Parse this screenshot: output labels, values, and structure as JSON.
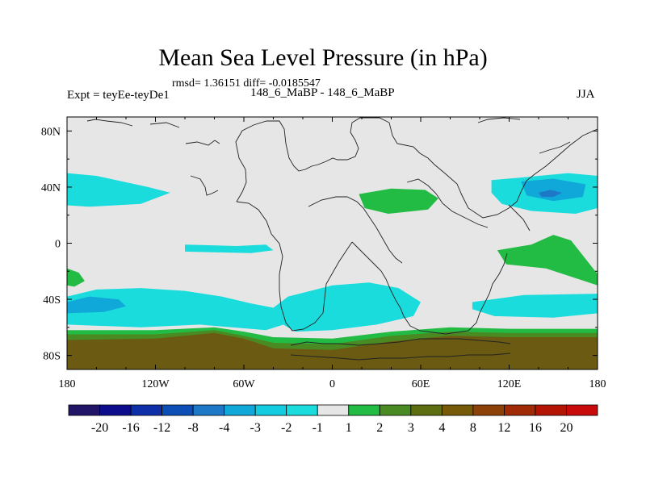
{
  "chart_data": {
    "type": "heatmap",
    "title": "Mean Sea Level Pressure (in hPa)",
    "stats": "rmsd= 1.36151 diff= -0.0185547",
    "left_label": "Expt = teyEe-teyDe1",
    "center_label": "148_6_MaBP - 148_6_MaBP",
    "right_label": "JJA",
    "xlim": [
      -180,
      180
    ],
    "ylim": [
      -90,
      90
    ],
    "x_ticks": [
      {
        "value": -180,
        "label": "180"
      },
      {
        "value": -120,
        "label": "120W"
      },
      {
        "value": -60,
        "label": "60W"
      },
      {
        "value": 0,
        "label": "0"
      },
      {
        "value": 60,
        "label": "60E"
      },
      {
        "value": 120,
        "label": "120E"
      },
      {
        "value": 180,
        "label": "180"
      }
    ],
    "y_ticks": [
      {
        "value": 80,
        "label": "80N"
      },
      {
        "value": 40,
        "label": "40N"
      },
      {
        "value": 0,
        "label": "0"
      },
      {
        "value": -40,
        "label": "40S"
      },
      {
        "value": -80,
        "label": "80S"
      }
    ],
    "colorbar": {
      "colors": [
        "#221466",
        "#0c0c8c",
        "#0e2fa8",
        "#0c4db6",
        "#1e78c8",
        "#10a8d8",
        "#14cce0",
        "#1adcdc",
        "#e6e6e6",
        "#22bb44",
        "#4a8a22",
        "#5c6e10",
        "#765a08",
        "#8c4206",
        "#a02a06",
        "#b41404",
        "#c80a0a"
      ],
      "labels": [
        "-20",
        "-16",
        "-12",
        "-8",
        "-4",
        "-3",
        "-2",
        "-1",
        "1",
        "2",
        "3",
        "4",
        "8",
        "12",
        "16",
        "20"
      ]
    },
    "regions": [
      {
        "name": "band-60-65S",
        "level": "2 to 3",
        "color": "#22bb44",
        "points": [
          [
            -180,
            -62
          ],
          [
            -120,
            -62
          ],
          [
            -80,
            -60
          ],
          [
            -60,
            -63
          ],
          [
            -40,
            -67
          ],
          [
            0,
            -68
          ],
          [
            40,
            -63
          ],
          [
            80,
            -60
          ],
          [
            120,
            -61
          ],
          [
            180,
            -61
          ],
          [
            180,
            -90
          ],
          [
            -180,
            -90
          ]
        ]
      },
      {
        "name": "band-65-70S",
        "level": "3 to 4",
        "color": "#4a8a22",
        "points": [
          [
            -180,
            -65
          ],
          [
            -120,
            -65
          ],
          [
            -80,
            -62
          ],
          [
            -60,
            -66
          ],
          [
            -40,
            -71
          ],
          [
            0,
            -72
          ],
          [
            40,
            -66
          ],
          [
            80,
            -63
          ],
          [
            120,
            -64
          ],
          [
            180,
            -64
          ],
          [
            180,
            -90
          ],
          [
            -180,
            -90
          ]
        ]
      },
      {
        "name": "band-70-90S",
        "level": "4 to 8",
        "color": "#6a5a12",
        "points": [
          [
            -180,
            -69
          ],
          [
            -120,
            -68
          ],
          [
            -80,
            -64
          ],
          [
            -60,
            -68
          ],
          [
            -40,
            -75
          ],
          [
            0,
            -76
          ],
          [
            40,
            -70
          ],
          [
            80,
            -66
          ],
          [
            120,
            -67
          ],
          [
            180,
            -67
          ],
          [
            180,
            -90
          ],
          [
            -180,
            -90
          ]
        ]
      },
      {
        "name": "southern-ocean-low-west",
        "level": "-2 to -1",
        "color": "#1adcdc",
        "points": [
          [
            -180,
            -38
          ],
          [
            -160,
            -33
          ],
          [
            -130,
            -32
          ],
          [
            -100,
            -34
          ],
          [
            -75,
            -38
          ],
          [
            -55,
            -43
          ],
          [
            -40,
            -46
          ],
          [
            -35,
            -53
          ],
          [
            -30,
            -57
          ],
          [
            -45,
            -62
          ],
          [
            -90,
            -58
          ],
          [
            -130,
            -60
          ],
          [
            -180,
            -58
          ]
        ]
      },
      {
        "name": "southern-ocean-low-east",
        "level": "-2 to -1",
        "color": "#1adcdc",
        "points": [
          [
            -40,
            -46
          ],
          [
            -30,
            -38
          ],
          [
            0,
            -30
          ],
          [
            25,
            -28
          ],
          [
            45,
            -32
          ],
          [
            60,
            -42
          ],
          [
            55,
            -52
          ],
          [
            30,
            -58
          ],
          [
            0,
            -62
          ],
          [
            -25,
            -63
          ],
          [
            -35,
            -57
          ]
        ]
      },
      {
        "name": "southern-ocean-deep-low",
        "level": "-3 to -2",
        "color": "#10a8d8",
        "points": [
          [
            -180,
            -42
          ],
          [
            -165,
            -38
          ],
          [
            -145,
            -40
          ],
          [
            -140,
            -45
          ],
          [
            -155,
            -49
          ],
          [
            -180,
            -50
          ]
        ]
      },
      {
        "name": "indian-ocean-low",
        "level": "-2 to -1",
        "color": "#1adcdc",
        "points": [
          [
            95,
            -42
          ],
          [
            130,
            -37
          ],
          [
            180,
            -36
          ],
          [
            180,
            -50
          ],
          [
            150,
            -53
          ],
          [
            110,
            -52
          ],
          [
            95,
            -47
          ]
        ]
      },
      {
        "name": "north-atlantic-low",
        "level": "-2 to -1",
        "color": "#1adcdc",
        "points": [
          [
            -180,
            50
          ],
          [
            -160,
            48
          ],
          [
            -125,
            40
          ],
          [
            -110,
            36
          ],
          [
            -130,
            28
          ],
          [
            -165,
            26
          ],
          [
            -180,
            27
          ]
        ]
      },
      {
        "name": "equatorial-low",
        "level": "-2 to -1",
        "color": "#1adcdc",
        "points": [
          [
            -100,
            -1
          ],
          [
            -65,
            -2
          ],
          [
            -45,
            -1
          ],
          [
            -40,
            -5
          ],
          [
            -55,
            -7
          ],
          [
            -100,
            -6
          ]
        ]
      },
      {
        "name": "north-pacific-low",
        "level": "-2 to -1",
        "color": "#1adcdc",
        "points": [
          [
            108,
            45
          ],
          [
            130,
            47
          ],
          [
            160,
            50
          ],
          [
            180,
            48
          ],
          [
            180,
            25
          ],
          [
            165,
            21
          ],
          [
            135,
            23
          ],
          [
            115,
            28
          ],
          [
            108,
            36
          ]
        ]
      },
      {
        "name": "north-pacific-low-core",
        "level": "-3 to -2",
        "color": "#10a8d8",
        "points": [
          [
            128,
            44
          ],
          [
            150,
            46
          ],
          [
            172,
            42
          ],
          [
            170,
            33
          ],
          [
            150,
            30
          ],
          [
            132,
            34
          ]
        ]
      },
      {
        "name": "north-pacific-deep-core",
        "level": "-4 to -3",
        "color": "#1e78c8",
        "points": [
          [
            140,
            36
          ],
          [
            148,
            38
          ],
          [
            156,
            36
          ],
          [
            150,
            33
          ],
          [
            142,
            33
          ]
        ]
      },
      {
        "name": "central-asia-high",
        "level": "1 to 2",
        "color": "#22bb44",
        "points": [
          [
            18,
            35
          ],
          [
            40,
            39
          ],
          [
            63,
            38
          ],
          [
            72,
            32
          ],
          [
            65,
            24
          ],
          [
            38,
            21
          ],
          [
            22,
            25
          ]
        ]
      },
      {
        "name": "tropical-pacific-high",
        "level": "1 to 2",
        "color": "#22bb44",
        "points": [
          [
            112,
            -5
          ],
          [
            135,
            -1
          ],
          [
            150,
            6
          ],
          [
            162,
            2
          ],
          [
            180,
            -22
          ],
          [
            180,
            -30
          ],
          [
            145,
            -18
          ],
          [
            118,
            -15
          ]
        ]
      },
      {
        "name": "south-atlantic-high-west",
        "level": "1 to 2",
        "color": "#22bb44",
        "points": [
          [
            -180,
            -18
          ],
          [
            -172,
            -21
          ],
          [
            -168,
            -27
          ],
          [
            -175,
            -31
          ],
          [
            -180,
            -30
          ]
        ]
      }
    ]
  }
}
